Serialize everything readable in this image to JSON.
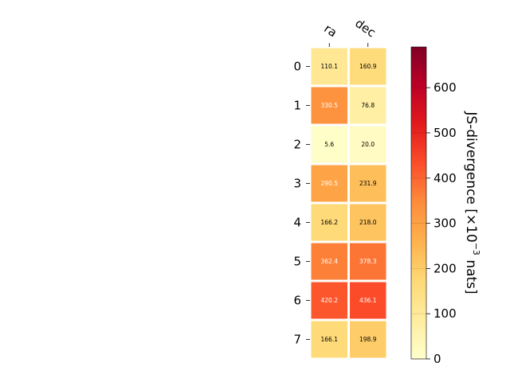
{
  "chart_data": {
    "type": "heatmap",
    "columns": [
      "ra",
      "dec"
    ],
    "rows": [
      "0",
      "1",
      "2",
      "3",
      "4",
      "5",
      "6",
      "7"
    ],
    "values": [
      [
        110.1,
        160.9
      ],
      [
        330.5,
        76.8
      ],
      [
        5.6,
        20.0
      ],
      [
        290.5,
        231.9
      ],
      [
        166.2,
        218.0
      ],
      [
        362.4,
        378.3
      ],
      [
        420.2,
        436.1
      ],
      [
        166.1,
        198.9
      ]
    ],
    "cell_labels": [
      [
        "110.1",
        "160.9"
      ],
      [
        "330.5",
        "76.8"
      ],
      [
        "5.6",
        "20.0"
      ],
      [
        "290.5",
        "231.9"
      ],
      [
        "166.2",
        "218.0"
      ],
      [
        "362.4",
        "378.3"
      ],
      [
        "420.2",
        "436.1"
      ],
      [
        "166.1",
        "198.9"
      ]
    ],
    "colorbar": {
      "label_main": "JS-divergence [×10",
      "label_exp": "−3",
      "label_end": " nats]",
      "min": 0,
      "max": 690,
      "ticks": [
        0,
        100,
        200,
        300,
        400,
        500,
        600
      ],
      "colormap": "YlOrRd"
    }
  }
}
